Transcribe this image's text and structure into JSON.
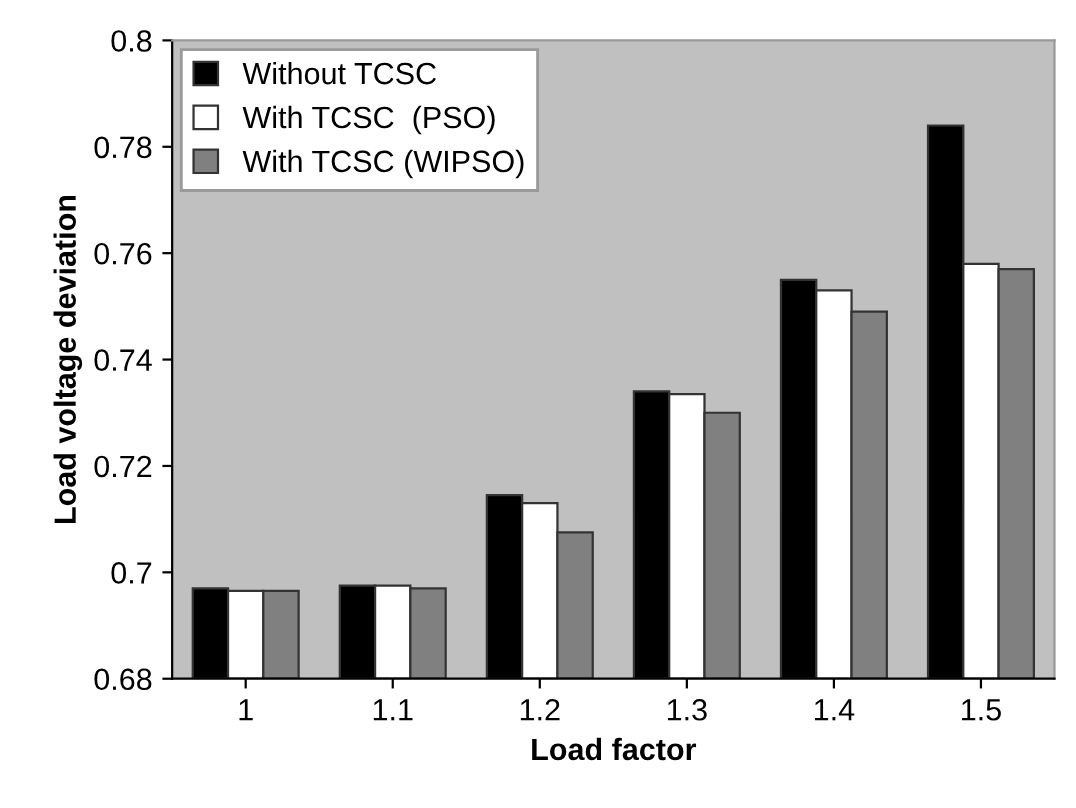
{
  "chart_data": {
    "type": "bar",
    "xlabel": "Load factor",
    "ylabel": "Load voltage deviation",
    "categories": [
      "1",
      "1.1",
      "1.2",
      "1.3",
      "1.4",
      "1.5"
    ],
    "series": [
      {
        "name": "Without TCSC",
        "color": "#000000",
        "values": [
          0.697,
          0.6975,
          0.7145,
          0.734,
          0.755,
          0.784
        ]
      },
      {
        "name": "With TCSC  (PSO)",
        "color": "#ffffff",
        "values": [
          0.6965,
          0.6975,
          0.713,
          0.7335,
          0.753,
          0.758
        ]
      },
      {
        "name": "With TCSC (WIPSO)",
        "color": "#808080",
        "values": [
          0.6965,
          0.697,
          0.7075,
          0.73,
          0.749,
          0.757
        ]
      }
    ],
    "ylim": [
      0.68,
      0.8
    ],
    "yticks": [
      0.68,
      0.7,
      0.72,
      0.74,
      0.76,
      0.78,
      0.8
    ],
    "grid": false,
    "legend": "top left"
  }
}
